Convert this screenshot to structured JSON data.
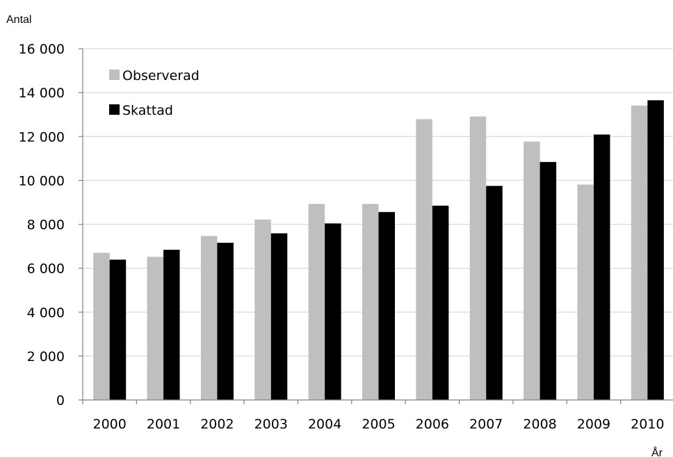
{
  "chart_data": {
    "type": "bar",
    "ylabel": "Antal",
    "xlabel": "År",
    "categories": [
      "2000",
      "2001",
      "2002",
      "2003",
      "2004",
      "2005",
      "2006",
      "2007",
      "2008",
      "2009",
      "2010"
    ],
    "series": [
      {
        "name": "Observerad",
        "color": "#bfbfbf",
        "values": [
          6700,
          6520,
          7470,
          8220,
          8930,
          8930,
          12790,
          12910,
          11770,
          9810,
          13410
        ]
      },
      {
        "name": "Skattad",
        "color": "#000000",
        "values": [
          6390,
          6840,
          7160,
          7590,
          8040,
          8560,
          8850,
          9750,
          10840,
          12090,
          13650
        ]
      }
    ],
    "ylim": [
      0,
      16000
    ],
    "yticks": [
      0,
      2000,
      4000,
      6000,
      8000,
      10000,
      12000,
      14000,
      16000
    ],
    "ytick_labels": [
      "0",
      "2 000",
      "4 000",
      "6 000",
      "8 000",
      "10 000",
      "12 000",
      "14 000",
      "16 000"
    ],
    "grid": true,
    "legend_position": "top-left"
  }
}
